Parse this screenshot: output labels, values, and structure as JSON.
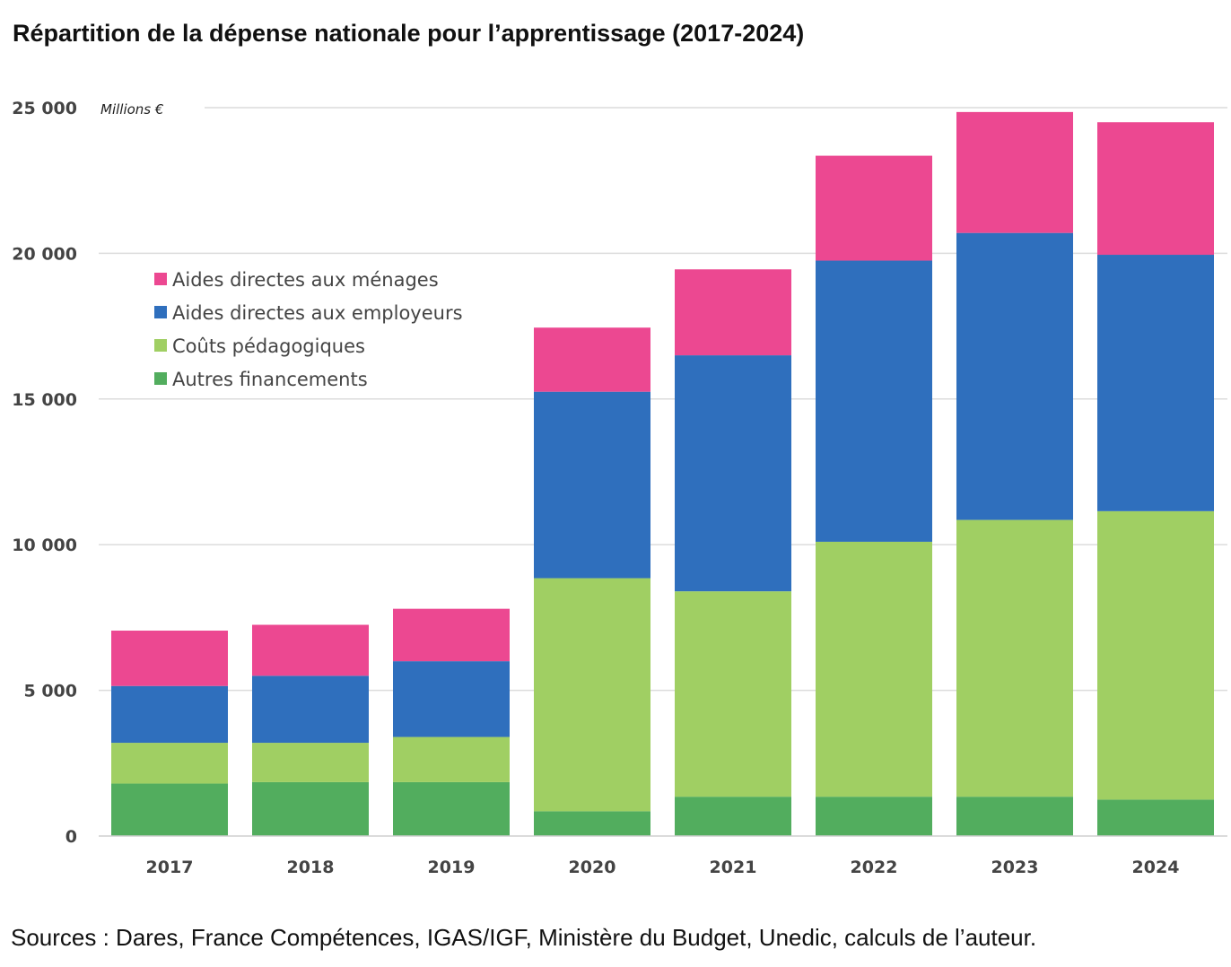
{
  "title": "Répartition de la dépense nationale pour l’apprentissage (2017-2024)",
  "source": "Sources : Dares, France Compétences, IGAS/IGF, Ministère du Budget, Unedic, calculs de l’auteur.",
  "chart_data": {
    "type": "bar",
    "stacked": true,
    "title": "Répartition de la dépense nationale pour l’apprentissage (2017-2024)",
    "unit_label": "Millions €",
    "ylabel": "Millions €",
    "xlabel": "",
    "ylim": [
      0,
      25000
    ],
    "yticks": [
      0,
      5000,
      10000,
      15000,
      20000,
      25000
    ],
    "ytick_labels": [
      "0",
      "5 000",
      "10 000",
      "15 000",
      "20 000",
      "25 000"
    ],
    "categories": [
      "2017",
      "2018",
      "2019",
      "2020",
      "2021",
      "2022",
      "2023",
      "2024"
    ],
    "grid": true,
    "legend_position": "upper-left",
    "series": [
      {
        "name": "Autres financements",
        "color": "#52ad5e",
        "values": [
          1800,
          1850,
          1850,
          850,
          1350,
          1350,
          1350,
          1250
        ]
      },
      {
        "name": "Coûts pédagogiques",
        "color": "#a0cf63",
        "values": [
          1400,
          1350,
          1550,
          8000,
          7050,
          8750,
          9500,
          9900
        ]
      },
      {
        "name": "Aides directes aux employeurs",
        "color": "#2f6fbd",
        "values": [
          1950,
          2300,
          2600,
          6400,
          8100,
          9650,
          9850,
          8800
        ]
      },
      {
        "name": "Aides directes aux ménages",
        "color": "#ec4891",
        "values": [
          1900,
          1750,
          1800,
          2200,
          2950,
          3600,
          4150,
          4550
        ]
      }
    ],
    "legend_order": [
      3,
      2,
      1,
      0
    ]
  }
}
